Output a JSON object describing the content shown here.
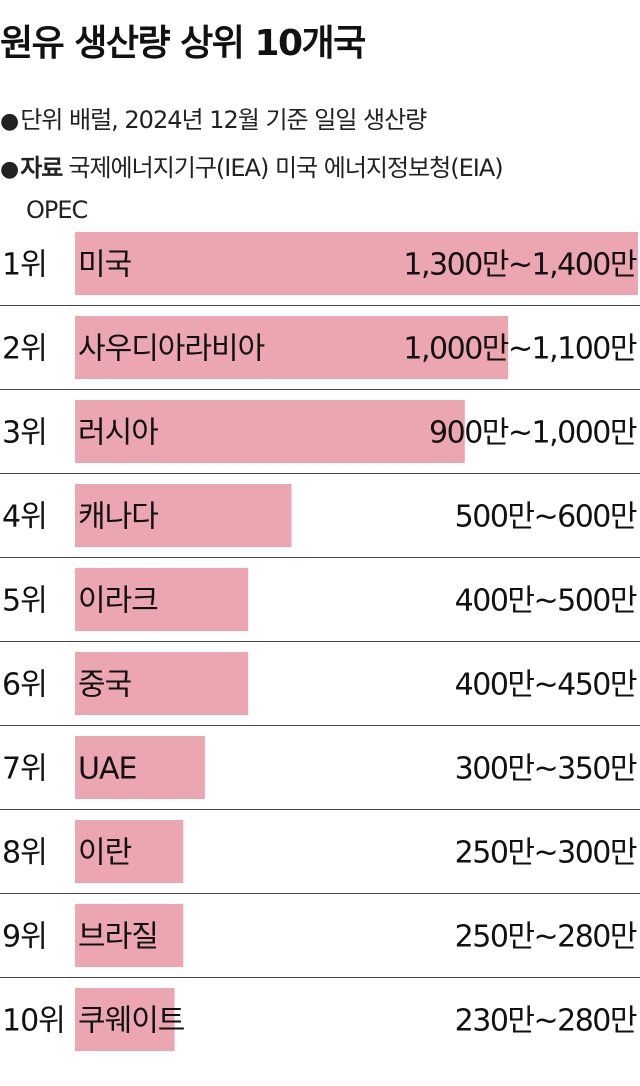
{
  "header": {
    "title": "원유 생산량 상위 10개국",
    "unit_bullet": "●",
    "unit_text": "단위  배럴, 2024년 12월 기준 일일 생산량",
    "source_bullet": "●",
    "source_label": "자료",
    "source_text": "국제에너지기구(IEA) 미국 에너지정보청(EIA)",
    "source_text_2": "OPEC"
  },
  "colors": {
    "bar": "#eba6b1",
    "divider": "#444444"
  },
  "chart_data": {
    "type": "bar",
    "orientation": "horizontal",
    "title": "원유 생산량 상위 10개국",
    "rank_labels": [
      "1위",
      "2위",
      "3위",
      "4위",
      "5위",
      "6위",
      "7위",
      "8위",
      "9위",
      "10위"
    ],
    "categories": [
      "미국",
      "사우디아라비아",
      "러시아",
      "캐나다",
      "이라크",
      "중국",
      "UAE",
      "이란",
      "브라질",
      "쿠웨이트"
    ],
    "value_labels": [
      "1,300만~1,400만",
      "1,000만~1,100만",
      "900만~1,000만",
      "500만~600만",
      "400만~500만",
      "400만~450만",
      "300만~350만",
      "250만~300만",
      "250만~280만",
      "230만~280만"
    ],
    "values": [
      1300,
      1000,
      900,
      500,
      400,
      400,
      300,
      250,
      250,
      230
    ],
    "value_unit": "만 배럴",
    "xlim": [
      0,
      1300
    ],
    "grid": false,
    "legend": "none"
  }
}
